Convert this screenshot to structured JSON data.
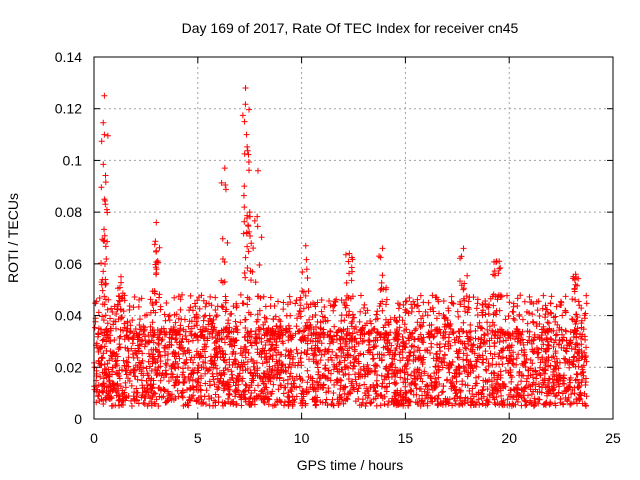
{
  "chart_data": {
    "type": "scatter",
    "title": "Day 169 of 2017, Rate Of TEC Index for receiver cn45",
    "xlabel": "GPS time / hours",
    "ylabel": "ROTI / TECUs",
    "xlim": [
      0,
      25
    ],
    "ylim": [
      0,
      0.14
    ],
    "x_ticks": [
      0,
      5,
      10,
      15,
      20,
      25
    ],
    "y_ticks": [
      0,
      0.02,
      0.04,
      0.06,
      0.08,
      0.1,
      0.12,
      0.14
    ],
    "x_tick_labels": [
      "0",
      "5",
      "10",
      "15",
      "20",
      "25"
    ],
    "y_tick_labels": [
      "0",
      "0.02",
      "0.04",
      "0.06",
      "0.08",
      "0.1",
      "0.12",
      "0.14"
    ],
    "grid": true,
    "marker": "plus",
    "color": "#ff0000",
    "data_range_hours": [
      0,
      23.75
    ],
    "baseline_band": [
      0.005,
      0.035
    ],
    "peaks": [
      {
        "x": 0.5,
        "y": 0.125
      },
      {
        "x": 0.5,
        "y": 0.11
      },
      {
        "x": 0.5,
        "y": 0.085
      },
      {
        "x": 1.3,
        "y": 0.055
      },
      {
        "x": 3.0,
        "y": 0.076
      },
      {
        "x": 3.0,
        "y": 0.065
      },
      {
        "x": 6.3,
        "y": 0.097
      },
      {
        "x": 7.3,
        "y": 0.128
      },
      {
        "x": 7.35,
        "y": 0.11
      },
      {
        "x": 7.9,
        "y": 0.096
      },
      {
        "x": 7.5,
        "y": 0.08
      },
      {
        "x": 10.2,
        "y": 0.067
      },
      {
        "x": 12.3,
        "y": 0.064
      },
      {
        "x": 13.9,
        "y": 0.066
      },
      {
        "x": 17.8,
        "y": 0.066
      },
      {
        "x": 19.4,
        "y": 0.061
      },
      {
        "x": 23.2,
        "y": 0.056
      }
    ]
  }
}
